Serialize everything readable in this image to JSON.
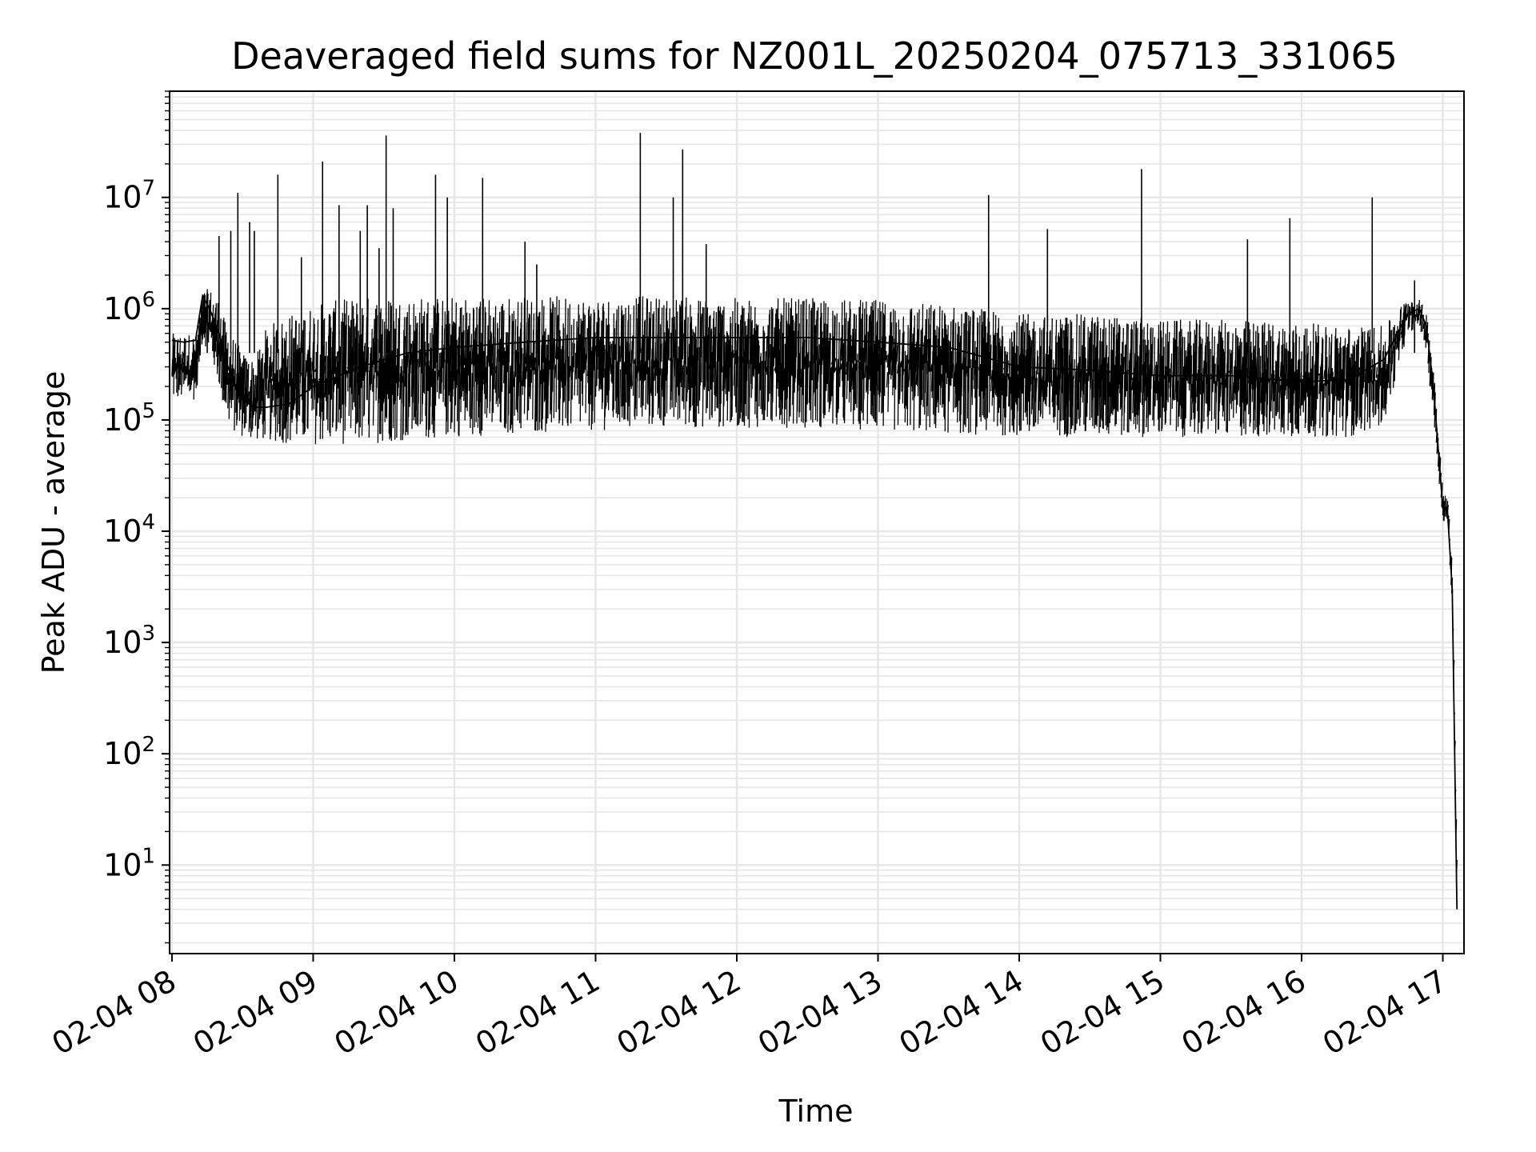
{
  "chart_data": {
    "type": "line",
    "title": "Deaveraged field sums for NZ001L_20250204_075713_331065",
    "xlabel": "Time",
    "ylabel": "Peak ADU - average",
    "yscale": "log",
    "grid": true,
    "line_color": "#000000",
    "grid_color": "#e6e6e6",
    "xlim": [
      "02-04 07:59",
      "02-04 17:09"
    ],
    "ylim": [
      1.6,
      90000000
    ],
    "x_ticks": [
      "02-04 08:00",
      "02-04 09:00",
      "02-04 10:00",
      "02-04 11:00",
      "02-04 12:00",
      "02-04 13:00",
      "02-04 14:00",
      "02-04 15:00",
      "02-04 16:00",
      "02-04 17:00"
    ],
    "x_tick_labels": [
      "02-04 08",
      "02-04 09",
      "02-04 10",
      "02-04 11",
      "02-04 12",
      "02-04 13",
      "02-04 14",
      "02-04 15",
      "02-04 16",
      "02-04 17"
    ],
    "y_ticks": [
      {
        "value": 10,
        "base": "10",
        "exp": "1"
      },
      {
        "value": 100,
        "base": "10",
        "exp": "2"
      },
      {
        "value": 1000,
        "base": "10",
        "exp": "3"
      },
      {
        "value": 10000,
        "base": "10",
        "exp": "4"
      },
      {
        "value": 100000,
        "base": "10",
        "exp": "5"
      },
      {
        "value": 1000000,
        "base": "10",
        "exp": "6"
      },
      {
        "value": 10000000,
        "base": "10",
        "exp": "7"
      }
    ],
    "series": [
      {
        "x": [
          "02-04 08:00",
          "02-04 08:05",
          "02-04 08:10",
          "02-04 08:13",
          "02-04 08:16",
          "02-04 08:20",
          "02-04 08:22",
          "02-04 08:25",
          "02-04 08:30",
          "02-04 08:35",
          "02-04 08:40",
          "02-04 08:50",
          "02-04 09:00",
          "02-04 09:20",
          "02-04 09:40",
          "02-04 10:00",
          "02-04 10:30",
          "02-04 11:00",
          "02-04 11:30",
          "02-04 12:00",
          "02-04 12:30",
          "02-04 13:00",
          "02-04 13:30",
          "02-04 14:00",
          "02-04 14:30",
          "02-04 15:00",
          "02-04 15:30",
          "02-04 16:00",
          "02-04 16:20",
          "02-04 16:35",
          "02-04 16:45",
          "02-04 16:50",
          "02-04 16:53",
          "02-04 16:56",
          "02-04 17:00",
          "02-04 17:02",
          "02-04 17:04",
          "02-04 17:06"
        ],
        "y": [
          520000,
          500000,
          520000,
          1300000,
          1000000,
          600000,
          400000,
          250000,
          150000,
          130000,
          130000,
          140000,
          200000,
          300000,
          400000,
          450000,
          500000,
          550000,
          550000,
          550000,
          550000,
          500000,
          450000,
          300000,
          280000,
          250000,
          250000,
          220000,
          230000,
          350000,
          900000,
          1000000,
          700000,
          200000,
          16000,
          15000,
          3000,
          4
        ],
        "band": [
          [
            150000,
            600000
          ],
          [
            150000,
            600000
          ],
          [
            150000,
            600000
          ],
          [
            500000,
            1500000
          ],
          [
            400000,
            1500000
          ],
          [
            200000,
            1200000
          ],
          [
            120000,
            800000
          ],
          [
            80000,
            600000
          ],
          [
            70000,
            400000
          ],
          [
            65000,
            350000
          ],
          [
            65000,
            700000
          ],
          [
            60000,
            900000
          ],
          [
            60000,
            1100000
          ],
          [
            60000,
            1300000
          ],
          [
            65000,
            1300000
          ],
          [
            70000,
            1300000
          ],
          [
            75000,
            1300000
          ],
          [
            80000,
            1300000
          ],
          [
            85000,
            1300000
          ],
          [
            85000,
            1250000
          ],
          [
            85000,
            1250000
          ],
          [
            80000,
            1200000
          ],
          [
            75000,
            1100000
          ],
          [
            70000,
            900000
          ],
          [
            70000,
            900000
          ],
          [
            70000,
            800000
          ],
          [
            70000,
            800000
          ],
          [
            70000,
            750000
          ],
          [
            70000,
            700000
          ],
          [
            90000,
            700000
          ],
          [
            600000,
            1300000
          ],
          [
            700000,
            1200000
          ],
          [
            400000,
            900000
          ],
          [
            100000,
            300000
          ],
          [
            12000,
            22000
          ],
          [
            12000,
            20000
          ],
          [
            2000,
            4000
          ],
          [
            3,
            5
          ]
        ],
        "spikes": [
          {
            "x": "02-04 08:15",
            "y": 1400000
          },
          {
            "x": "02-04 08:20",
            "y": 4500000
          },
          {
            "x": "02-04 08:25",
            "y": 5000000
          },
          {
            "x": "02-04 08:28",
            "y": 11000000
          },
          {
            "x": "02-04 08:33",
            "y": 6000000
          },
          {
            "x": "02-04 08:35",
            "y": 5000000
          },
          {
            "x": "02-04 08:45",
            "y": 16000000
          },
          {
            "x": "02-04 08:55",
            "y": 2900000
          },
          {
            "x": "02-04 09:04",
            "y": 21000000
          },
          {
            "x": "02-04 09:11",
            "y": 8500000
          },
          {
            "x": "02-04 09:20",
            "y": 5000000
          },
          {
            "x": "02-04 09:23",
            "y": 8500000
          },
          {
            "x": "02-04 09:28",
            "y": 3500000
          },
          {
            "x": "02-04 09:31",
            "y": 36000000
          },
          {
            "x": "02-04 09:34",
            "y": 8000000
          },
          {
            "x": "02-04 09:52",
            "y": 16000000
          },
          {
            "x": "02-04 09:57",
            "y": 10000000
          },
          {
            "x": "02-04 10:12",
            "y": 15000000
          },
          {
            "x": "02-04 10:30",
            "y": 4000000
          },
          {
            "x": "02-04 10:35",
            "y": 2500000
          },
          {
            "x": "02-04 11:19",
            "y": 38000000
          },
          {
            "x": "02-04 11:33",
            "y": 10000000
          },
          {
            "x": "02-04 11:37",
            "y": 27000000
          },
          {
            "x": "02-04 11:47",
            "y": 3800000
          },
          {
            "x": "02-04 13:47",
            "y": 10500000
          },
          {
            "x": "02-04 14:12",
            "y": 5200000
          },
          {
            "x": "02-04 14:52",
            "y": 18000000
          },
          {
            "x": "02-04 15:37",
            "y": 4200000
          },
          {
            "x": "02-04 15:55",
            "y": 6500000
          },
          {
            "x": "02-04 16:30",
            "y": 10000000
          },
          {
            "x": "02-04 16:48",
            "y": 1800000
          }
        ]
      }
    ]
  }
}
